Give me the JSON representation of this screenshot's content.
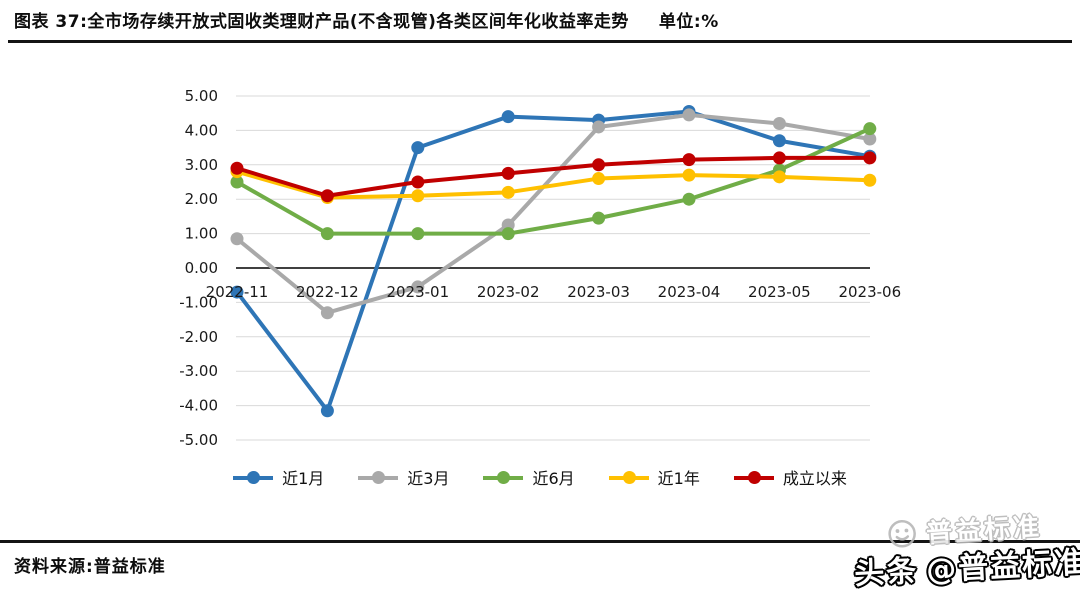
{
  "header": {
    "title": "图表 37:全市场存续开放式固收类理财产品(不含现管)各类区间年化收益率走势",
    "unit": "单位:%"
  },
  "chart_data": {
    "type": "line",
    "title": "全市场存续开放式固收类理财产品(不含现管)各类区间年化收益率走势",
    "unit": "%",
    "categories": [
      "2022-11",
      "2022-12",
      "2023-01",
      "2023-02",
      "2023-03",
      "2023-04",
      "2023-05",
      "2023-06"
    ],
    "series": [
      {
        "name": "近1月",
        "color": "#2E75B6",
        "values": [
          -0.7,
          -4.15,
          3.5,
          4.4,
          4.3,
          4.55,
          3.7,
          3.25
        ]
      },
      {
        "name": "近3月",
        "color": "#A9A9A9",
        "values": [
          0.85,
          -1.3,
          -0.55,
          1.25,
          4.1,
          4.45,
          4.2,
          3.75
        ]
      },
      {
        "name": "近6月",
        "color": "#70AD47",
        "values": [
          2.5,
          1.0,
          1.0,
          1.0,
          1.45,
          2.0,
          2.85,
          4.05
        ]
      },
      {
        "name": "近1年",
        "color": "#FFC000",
        "values": [
          2.8,
          2.05,
          2.1,
          2.2,
          2.6,
          2.7,
          2.65,
          2.55
        ]
      },
      {
        "name": "成立以来",
        "color": "#C00000",
        "values": [
          2.9,
          2.1,
          2.5,
          2.75,
          3.0,
          3.15,
          3.2,
          3.2
        ]
      }
    ],
    "ylim": [
      -5,
      5
    ],
    "ytick_step": 1,
    "ytick_format": "0.00",
    "grid": true,
    "grid_color": "#D9D9D9",
    "axis_color": "#404040",
    "legend_position": "bottom"
  },
  "footer": {
    "source": "资料来源:普益标准"
  },
  "watermark": {
    "platform": "头条",
    "handle": "@普益标准",
    "ghost_text": "普益标准"
  }
}
